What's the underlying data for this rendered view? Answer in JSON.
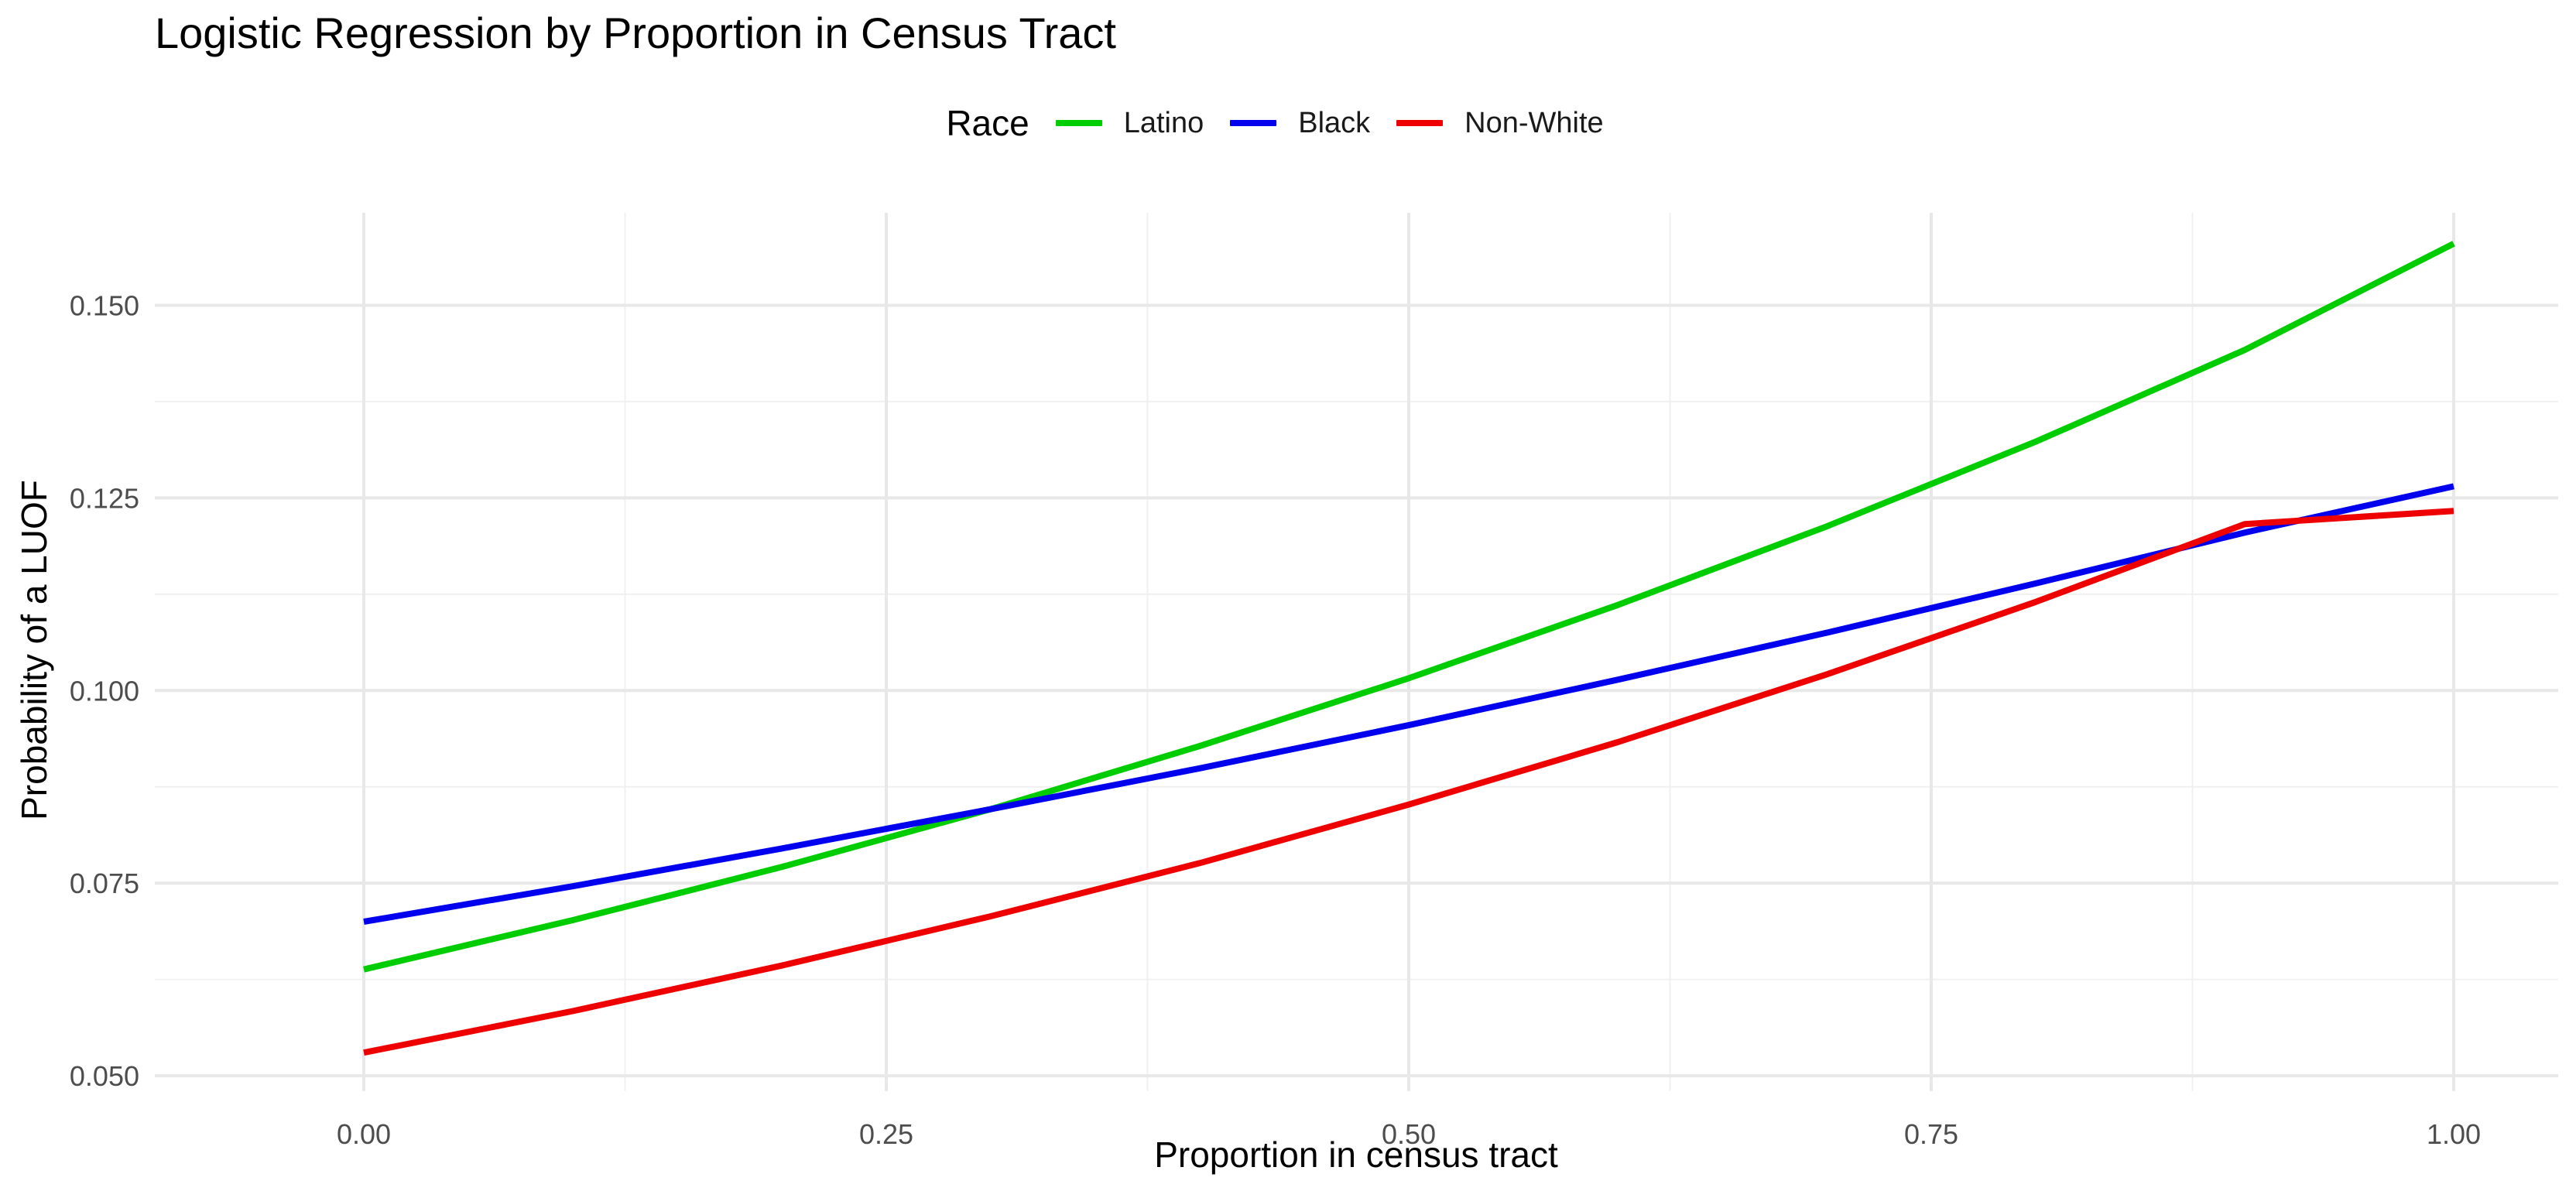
{
  "chart_data": {
    "type": "line",
    "title": "Logistic Regression by Proportion in Census Tract",
    "xlabel": "Proportion in census tract",
    "ylabel": "Probability of a LUOF",
    "xlim": [
      -0.1,
      1.05
    ],
    "ylim": [
      0.048,
      0.162
    ],
    "x_ticks": [
      0.0,
      0.25,
      0.5,
      0.75,
      1.0
    ],
    "x_tick_labels": [
      "0.00",
      "0.25",
      "0.50",
      "0.75",
      "1.00"
    ],
    "y_ticks": [
      0.05,
      0.075,
      0.1,
      0.125,
      0.15
    ],
    "y_tick_labels": [
      "0.050",
      "0.075",
      "0.100",
      "0.125",
      "0.150"
    ],
    "grid": true,
    "legend": {
      "title": "Race",
      "placement": "top"
    },
    "x": [
      0.0,
      0.1,
      0.2,
      0.3,
      0.4,
      0.5,
      0.6,
      0.7,
      0.8,
      0.9,
      1.0
    ],
    "series": [
      {
        "name": "Latino",
        "color": "#00cd00",
        "values": [
          0.0638,
          0.0702,
          0.0771,
          0.0846,
          0.0928,
          0.1016,
          0.1111,
          0.1213,
          0.1323,
          0.1442,
          0.158
        ]
      },
      {
        "name": "Black",
        "color": "#0000ee",
        "values": [
          0.07,
          0.0746,
          0.0795,
          0.0846,
          0.0899,
          0.0955,
          0.1014,
          0.1075,
          0.1139,
          0.1205,
          0.1265
        ]
      },
      {
        "name": "Non-White",
        "color": "#ee0000",
        "values": [
          0.053,
          0.0584,
          0.0643,
          0.0707,
          0.0776,
          0.0852,
          0.0933,
          0.1021,
          0.1115,
          0.1216,
          0.1233
        ]
      }
    ]
  }
}
